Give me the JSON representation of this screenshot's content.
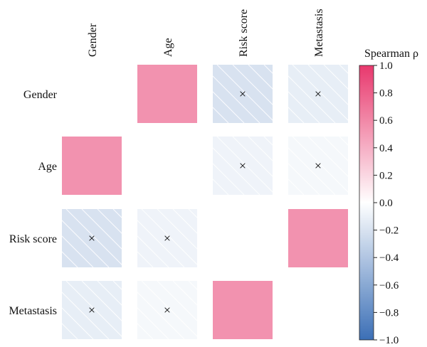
{
  "chart_data": {
    "type": "heatmap",
    "row_labels": [
      "Gender",
      "Age",
      "Risk score",
      "Metastasis"
    ],
    "column_labels": [
      "Gender",
      "Age",
      "Risk score",
      "Metastasis"
    ],
    "values": [
      [
        null,
        0.55,
        -0.2,
        -0.12
      ],
      [
        0.55,
        null,
        -0.08,
        -0.05
      ],
      [
        -0.2,
        -0.08,
        null,
        0.55
      ],
      [
        -0.12,
        -0.05,
        0.55,
        null
      ]
    ],
    "not_significant_marker": "×",
    "insignificant": [
      [
        false,
        false,
        true,
        true
      ],
      [
        false,
        false,
        true,
        true
      ],
      [
        true,
        true,
        false,
        false
      ],
      [
        true,
        true,
        false,
        false
      ]
    ],
    "colorbar": {
      "label": "Spearman ρ",
      "range": [
        -1.0,
        1.0
      ],
      "ticks": [
        "1.0",
        "0.8",
        "0.6",
        "0.4",
        "0.2",
        "0.0",
        "−0.2",
        "−0.4",
        "−0.6",
        "−0.8",
        "−1.0"
      ],
      "tick_values": [
        1.0,
        0.8,
        0.6,
        0.4,
        0.2,
        0.0,
        -0.2,
        -0.4,
        -0.6,
        -0.8,
        -1.0
      ]
    },
    "colors": {
      "negative": "#3b6fb6",
      "neutral": "#ffffff",
      "positive": "#e8386d",
      "hatch": "#ffffff"
    }
  }
}
